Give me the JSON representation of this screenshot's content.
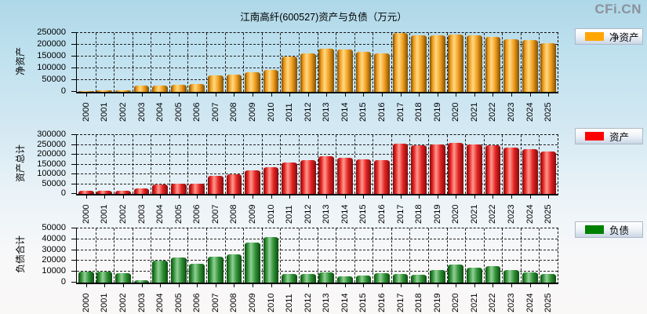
{
  "header": {
    "title": "江南高纤(600527)资产与负债（万元）",
    "watermark": "CFi.CN"
  },
  "chart_data": [
    {
      "type": "bar",
      "ylabel": "净资产",
      "legend": "净资产",
      "legend_color": "#FFA500",
      "bar_colors": {
        "edge": "#7c4f05",
        "body": "#f09c1c",
        "highlight": "#ffd983"
      },
      "ylim": [
        0,
        250000
      ],
      "ytick_step": 50000,
      "grid": "dashed",
      "legend_position": "right",
      "categories": [
        "2000",
        "2001",
        "2002",
        "2003",
        "2004",
        "2005",
        "2006",
        "2007",
        "2008",
        "2009",
        "2010",
        "2011",
        "2012",
        "2013",
        "2014",
        "2015",
        "2016",
        "2017",
        "2018",
        "2019",
        "2020",
        "2021",
        "2022",
        "2023",
        "2024",
        "2025"
      ],
      "values": [
        5000,
        5500,
        8000,
        26000,
        28000,
        30000,
        33000,
        70000,
        73000,
        82000,
        94000,
        151000,
        165000,
        183000,
        179000,
        170000,
        162000,
        249000,
        241000,
        239000,
        245000,
        239000,
        235000,
        224000,
        219000,
        207000
      ]
    },
    {
      "type": "bar",
      "ylabel": "资产总计",
      "legend": "资产",
      "legend_color": "#FF0000",
      "bar_colors": {
        "edge": "#7e0c0c",
        "body": "#e42222",
        "highlight": "#ff9a8e"
      },
      "ylim": [
        0,
        300000
      ],
      "ytick_step": 50000,
      "grid": "dashed",
      "legend_position": "right",
      "categories": [
        "2000",
        "2001",
        "2002",
        "2003",
        "2004",
        "2005",
        "2006",
        "2007",
        "2008",
        "2009",
        "2010",
        "2011",
        "2012",
        "2013",
        "2014",
        "2015",
        "2016",
        "2017",
        "2018",
        "2019",
        "2020",
        "2021",
        "2022",
        "2023",
        "2024",
        "2025"
      ],
      "values": [
        16000,
        15500,
        16500,
        28500,
        49000,
        53500,
        51000,
        94000,
        99000,
        119000,
        136000,
        159000,
        173000,
        192000,
        185000,
        177000,
        171000,
        257000,
        248500,
        250500,
        261500,
        253000,
        250000,
        235500,
        228500,
        215000
      ]
    },
    {
      "type": "bar",
      "ylabel": "负债合计",
      "legend": "负债",
      "legend_color": "#008000",
      "bar_colors": {
        "edge": "#0d4a10",
        "body": "#2f9135",
        "highlight": "#93cf97"
      },
      "ylim": [
        0,
        50000
      ],
      "ytick_step": 10000,
      "grid": "dashed",
      "legend_position": "right",
      "categories": [
        "2000",
        "2001",
        "2002",
        "2003",
        "2004",
        "2005",
        "2006",
        "2007",
        "2008",
        "2009",
        "2010",
        "2011",
        "2012",
        "2013",
        "2014",
        "2015",
        "2016",
        "2017",
        "2018",
        "2019",
        "2020",
        "2021",
        "2022",
        "2023",
        "2024",
        "2025"
      ],
      "values": [
        10500,
        10000,
        8700,
        2400,
        20600,
        23300,
        17700,
        24000,
        26200,
        37300,
        42200,
        8100,
        8200,
        9100,
        5800,
        6500,
        8900,
        8200,
        7200,
        11500,
        16600,
        13900,
        14900,
        11500,
        9400,
        8200
      ]
    }
  ]
}
